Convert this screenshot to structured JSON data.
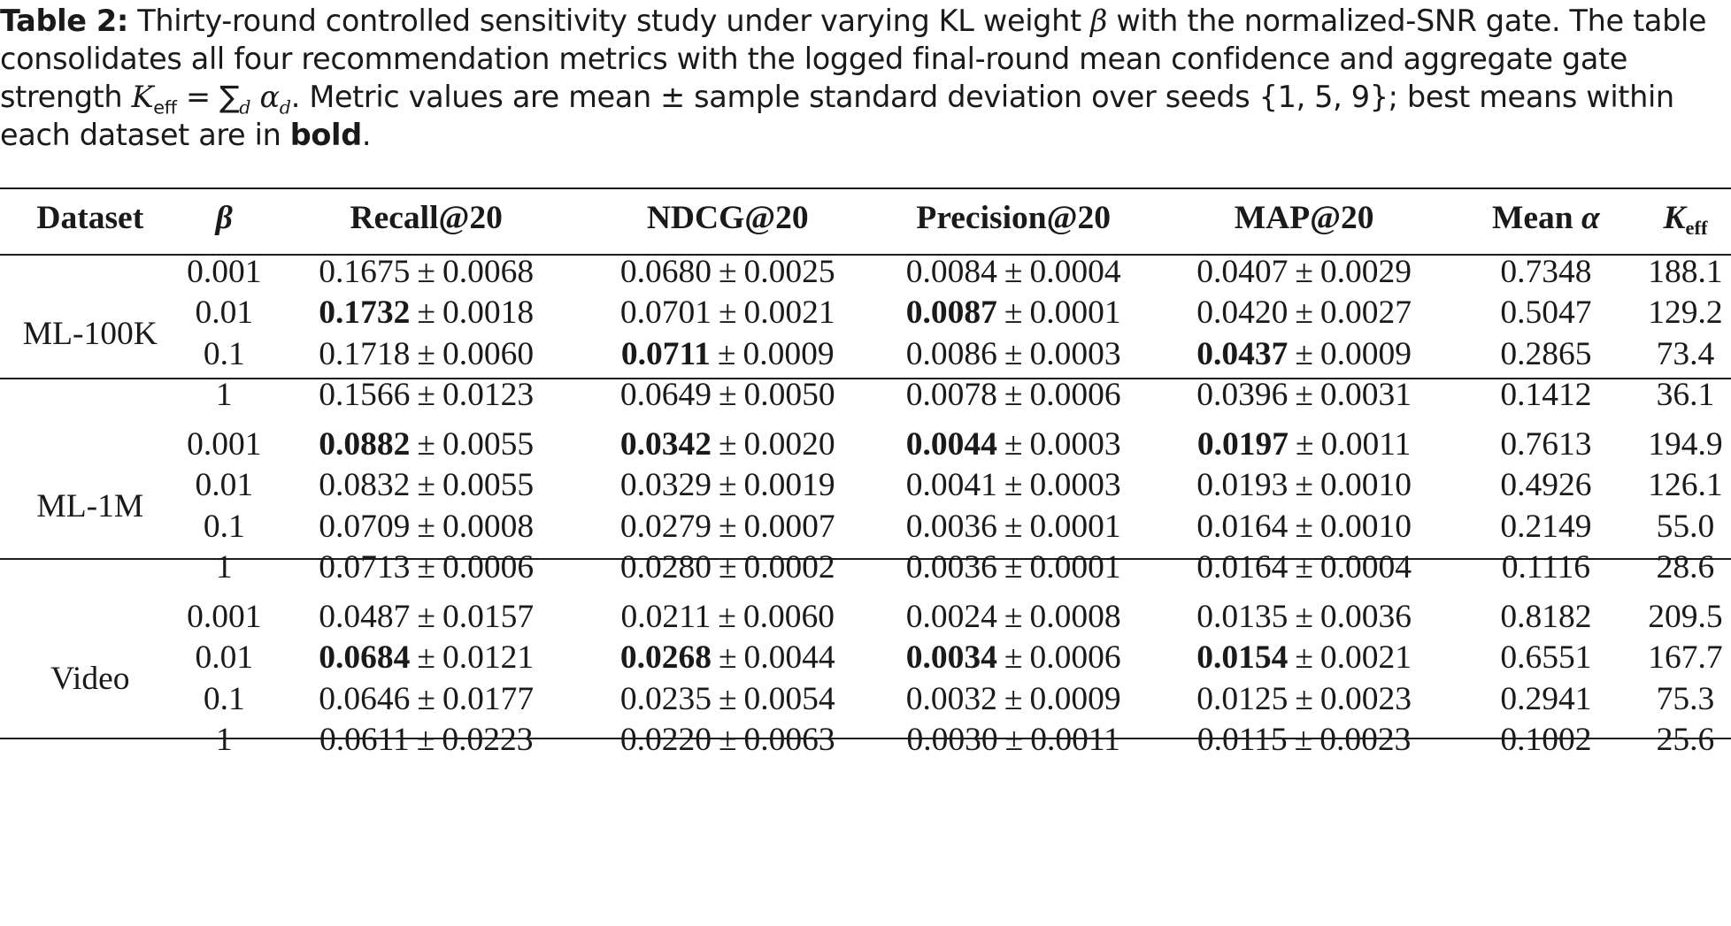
{
  "caption": {
    "label": "Table 2:",
    "text_part1": " Thirty-round controlled sensitivity study under varying KL weight ",
    "beta_symbol": "β",
    "text_part2": " with the normalized-SNR gate. The table consolidates all four recommendation metrics with the logged final-round mean confidence and aggregate gate strength ",
    "k_symbol": "K",
    "k_subscript": "eff",
    "eq": " = ",
    "sum_symbol": "∑",
    "sum_subscript": "d",
    "alpha_symbol": "α",
    "alpha_subscript": "d",
    "text_part3": ". Metric values are mean ± sample standard deviation over seeds ",
    "seeds": "{1, 5, 9}",
    "text_part4": "; best means within each dataset are in ",
    "bold_word": "bold",
    "text_end": "."
  },
  "table": {
    "headers": {
      "dataset": "Dataset",
      "beta": "β",
      "recall": "Recall@20",
      "ndcg": "NDCG@20",
      "precision": "Precision@20",
      "map": "MAP@20",
      "mean_alpha_label": "Mean ",
      "mean_alpha_symbol": "α",
      "keff_symbol": "K",
      "keff_subscript": "eff"
    },
    "pm_symbol": "±",
    "groups": [
      {
        "dataset": "ML-100K",
        "rows": [
          {
            "beta": "0.001",
            "recall": {
              "mean": "0.1675",
              "std": "0.0068"
            },
            "ndcg": {
              "mean": "0.0680",
              "std": "0.0025"
            },
            "precision": {
              "mean": "0.0084",
              "std": "0.0004"
            },
            "map": {
              "mean": "0.0407",
              "std": "0.0029"
            },
            "mean_alpha": "0.7348",
            "keff": "188.1"
          },
          {
            "beta": "0.01",
            "recall": {
              "mean": "0.1732",
              "std": "0.0018",
              "best": true
            },
            "ndcg": {
              "mean": "0.0701",
              "std": "0.0021"
            },
            "precision": {
              "mean": "0.0087",
              "std": "0.0001",
              "best": true
            },
            "map": {
              "mean": "0.0420",
              "std": "0.0027"
            },
            "mean_alpha": "0.5047",
            "keff": "129.2"
          },
          {
            "beta": "0.1",
            "recall": {
              "mean": "0.1718",
              "std": "0.0060"
            },
            "ndcg": {
              "mean": "0.0711",
              "std": "0.0009",
              "best": true
            },
            "precision": {
              "mean": "0.0086",
              "std": "0.0003"
            },
            "map": {
              "mean": "0.0437",
              "std": "0.0009",
              "best": true
            },
            "mean_alpha": "0.2865",
            "keff": "73.4"
          },
          {
            "beta": "1",
            "recall": {
              "mean": "0.1566",
              "std": "0.0123"
            },
            "ndcg": {
              "mean": "0.0649",
              "std": "0.0050"
            },
            "precision": {
              "mean": "0.0078",
              "std": "0.0006"
            },
            "map": {
              "mean": "0.0396",
              "std": "0.0031"
            },
            "mean_alpha": "0.1412",
            "keff": "36.1"
          }
        ]
      },
      {
        "dataset": "ML-1M",
        "rows": [
          {
            "beta": "0.001",
            "recall": {
              "mean": "0.0882",
              "std": "0.0055",
              "best": true
            },
            "ndcg": {
              "mean": "0.0342",
              "std": "0.0020",
              "best": true
            },
            "precision": {
              "mean": "0.0044",
              "std": "0.0003",
              "best": true
            },
            "map": {
              "mean": "0.0197",
              "std": "0.0011",
              "best": true
            },
            "mean_alpha": "0.7613",
            "keff": "194.9"
          },
          {
            "beta": "0.01",
            "recall": {
              "mean": "0.0832",
              "std": "0.0055"
            },
            "ndcg": {
              "mean": "0.0329",
              "std": "0.0019"
            },
            "precision": {
              "mean": "0.0041",
              "std": "0.0003"
            },
            "map": {
              "mean": "0.0193",
              "std": "0.0010"
            },
            "mean_alpha": "0.4926",
            "keff": "126.1"
          },
          {
            "beta": "0.1",
            "recall": {
              "mean": "0.0709",
              "std": "0.0008"
            },
            "ndcg": {
              "mean": "0.0279",
              "std": "0.0007"
            },
            "precision": {
              "mean": "0.0036",
              "std": "0.0001"
            },
            "map": {
              "mean": "0.0164",
              "std": "0.0010"
            },
            "mean_alpha": "0.2149",
            "keff": "55.0"
          },
          {
            "beta": "1",
            "recall": {
              "mean": "0.0713",
              "std": "0.0006"
            },
            "ndcg": {
              "mean": "0.0280",
              "std": "0.0002"
            },
            "precision": {
              "mean": "0.0036",
              "std": "0.0001"
            },
            "map": {
              "mean": "0.0164",
              "std": "0.0004"
            },
            "mean_alpha": "0.1116",
            "keff": "28.6"
          }
        ]
      },
      {
        "dataset": "Video",
        "rows": [
          {
            "beta": "0.001",
            "recall": {
              "mean": "0.0487",
              "std": "0.0157"
            },
            "ndcg": {
              "mean": "0.0211",
              "std": "0.0060"
            },
            "precision": {
              "mean": "0.0024",
              "std": "0.0008"
            },
            "map": {
              "mean": "0.0135",
              "std": "0.0036"
            },
            "mean_alpha": "0.8182",
            "keff": "209.5"
          },
          {
            "beta": "0.01",
            "recall": {
              "mean": "0.0684",
              "std": "0.0121",
              "best": true
            },
            "ndcg": {
              "mean": "0.0268",
              "std": "0.0044",
              "best": true
            },
            "precision": {
              "mean": "0.0034",
              "std": "0.0006",
              "best": true
            },
            "map": {
              "mean": "0.0154",
              "std": "0.0021",
              "best": true
            },
            "mean_alpha": "0.6551",
            "keff": "167.7"
          },
          {
            "beta": "0.1",
            "recall": {
              "mean": "0.0646",
              "std": "0.0177"
            },
            "ndcg": {
              "mean": "0.0235",
              "std": "0.0054"
            },
            "precision": {
              "mean": "0.0032",
              "std": "0.0009"
            },
            "map": {
              "mean": "0.0125",
              "std": "0.0023"
            },
            "mean_alpha": "0.2941",
            "keff": "75.3"
          },
          {
            "beta": "1",
            "recall": {
              "mean": "0.0611",
              "std": "0.0223"
            },
            "ndcg": {
              "mean": "0.0220",
              "std": "0.0063"
            },
            "precision": {
              "mean": "0.0030",
              "std": "0.0011"
            },
            "map": {
              "mean": "0.0115",
              "std": "0.0023"
            },
            "mean_alpha": "0.1002",
            "keff": "25.6"
          }
        ]
      }
    ]
  }
}
